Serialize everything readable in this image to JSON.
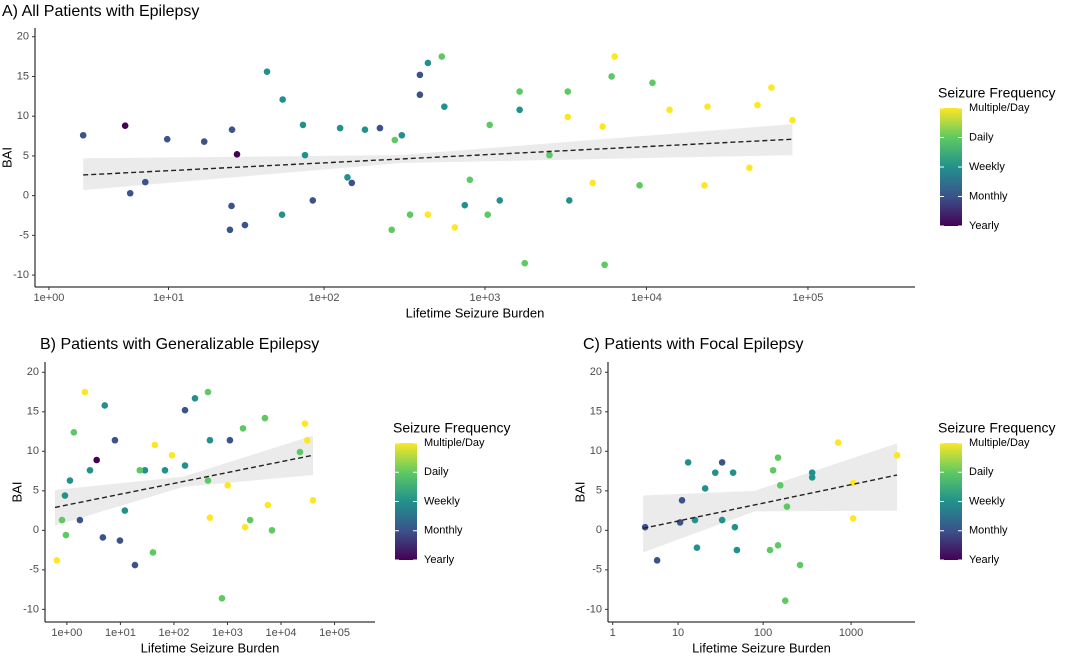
{
  "chart_data": [
    {
      "type": "scatter",
      "title": "A) All Patients with Epilepsy",
      "x_label": "Lifetime Seizure Burden",
      "y_label": "BAI",
      "xscale": "log1p",
      "xlim": [
        0.64,
        460000
      ],
      "ylim": [
        -11.5,
        21.1
      ],
      "xticks": [
        {
          "value": 1,
          "label": "1e+00"
        },
        {
          "value": 10,
          "label": "1e+01"
        },
        {
          "value": 100,
          "label": "1e+02"
        },
        {
          "value": 1000,
          "label": "1e+03"
        },
        {
          "value": 10000,
          "label": "1e+04"
        },
        {
          "value": 100000,
          "label": "1e+05"
        }
      ],
      "yticks": [
        -10,
        -5,
        0,
        5,
        10,
        15,
        20
      ],
      "legend_title": "Seizure Frequency",
      "series": [
        {
          "name": "Yearly",
          "color": "#440154",
          "x": [
            4.93,
            28.2
          ],
          "values": [
            8.8,
            5.2
          ]
        },
        {
          "name": "Monthly",
          "color": "#3b528b",
          "x": [
            2.26,
            5.37,
            6.9,
            9.8,
            17.3,
            26.2,
            25.4,
            26,
            31.7,
            85,
            149,
            223,
            395,
            395
          ],
          "values": [
            7.6,
            0.3,
            1.7,
            7.1,
            6.8,
            8.3,
            -4.3,
            -1.3,
            -3.7,
            -0.6,
            1.6,
            8.5,
            15.2,
            12.7
          ]
        },
        {
          "name": "Weekly",
          "color": "#21918c",
          "x": [
            43.8,
            55,
            73.8,
            76,
            54.5,
            126,
            305,
            443,
            560,
            1640,
            180,
            140,
            1235,
            750,
            3330
          ],
          "values": [
            15.6,
            12.1,
            8.9,
            5.1,
            -2.4,
            8.5,
            7.6,
            16.7,
            11.2,
            10.8,
            8.3,
            2.3,
            -0.6,
            -1.2,
            -0.6
          ]
        },
        {
          "name": "Daily",
          "color": "#5ec962",
          "x": [
            540,
            343,
            276,
            264,
            806,
            1070,
            1040,
            1765,
            1640,
            3260,
            2510,
            5510,
            6090,
            10900,
            9070
          ],
          "values": [
            17.5,
            -2.4,
            7.0,
            -4.3,
            2.0,
            8.9,
            -2.4,
            -8.5,
            13.1,
            13.1,
            5.1,
            -8.7,
            15.0,
            14.2,
            1.3
          ]
        },
        {
          "name": "Multiple/Day",
          "color": "#fde725",
          "x": [
            6360,
            5360,
            3260,
            13900,
            23900,
            22900,
            48700,
            59400,
            80200,
            651,
            443,
            4650,
            43400
          ],
          "values": [
            17.5,
            8.7,
            9.9,
            10.8,
            11.2,
            1.3,
            11.4,
            13.6,
            9.5,
            -4.0,
            -2.4,
            1.6,
            3.5
          ]
        }
      ],
      "trend": {
        "x": [
          2.26,
          80200
        ],
        "values": [
          2.6,
          7.1
        ]
      },
      "band": {
        "x": [
          2.26,
          300,
          80200
        ],
        "lower": [
          0.7,
          4.1,
          5.1
        ],
        "upper": [
          4.7,
          5.1,
          9.0
        ]
      }
    },
    {
      "type": "scatter",
      "title": "B) Patients with Generalizable Epilepsy",
      "x_label": "Lifetime Seizure Burden",
      "y_label": "BAI",
      "xscale": "log",
      "xlim": [
        0.39,
        570000
      ],
      "ylim": [
        -11.6,
        21.3
      ],
      "xticks": [
        {
          "value": 1,
          "label": "1e+00"
        },
        {
          "value": 10,
          "label": "1e+01"
        },
        {
          "value": 100,
          "label": "1e+02"
        },
        {
          "value": 1000,
          "label": "1e+03"
        },
        {
          "value": 10000,
          "label": "1e+04"
        },
        {
          "value": 100000,
          "label": "1e+05"
        }
      ],
      "yticks": [
        -10,
        -5,
        0,
        5,
        10,
        15,
        20
      ],
      "legend_title": "Seizure Frequency",
      "series": [
        {
          "name": "Yearly",
          "color": "#440154",
          "x": [
            3.6
          ],
          "values": [
            8.9
          ]
        },
        {
          "name": "Monthly",
          "color": "#3b528b",
          "x": [
            1.75,
            4.7,
            9.8,
            18.7,
            161,
            1110,
            7.9
          ],
          "values": [
            1.3,
            -0.9,
            -1.3,
            -4.4,
            15.2,
            11.4,
            11.4
          ]
        },
        {
          "name": "Weekly",
          "color": "#21918c",
          "x": [
            5.1,
            0.92,
            12.1,
            28.7,
            247,
            470,
            68,
            161,
            2.7,
            1.14
          ],
          "values": [
            15.8,
            4.4,
            2.5,
            7.6,
            16.7,
            11.4,
            7.6,
            8.2,
            7.6,
            6.3
          ]
        },
        {
          "name": "Daily",
          "color": "#5ec962",
          "x": [
            1.35,
            0.81,
            0.96,
            40.5,
            432,
            789,
            1950,
            5010,
            6780,
            22600,
            23,
            432,
            2650
          ],
          "values": [
            12.4,
            1.3,
            -0.6,
            -2.8,
            17.5,
            -8.6,
            12.9,
            14.2,
            0,
            9.9,
            7.6,
            6.3,
            1.3
          ]
        },
        {
          "name": "Multiple/Day",
          "color": "#fde725",
          "x": [
            0.65,
            2.17,
            28000,
            30900,
            39600,
            470,
            2130,
            5680,
            1010,
            44,
            92
          ],
          "values": [
            -3.8,
            17.5,
            13.5,
            11.4,
            3.8,
            1.6,
            0.4,
            3.2,
            5.7,
            10.8,
            9.5
          ]
        }
      ],
      "trend": {
        "x": [
          0.6,
          39600
        ],
        "values": [
          2.9,
          9.5
        ]
      },
      "band": {
        "x": [
          0.6,
          150,
          39600
        ],
        "lower": [
          0.6,
          5.5,
          7.0
        ],
        "upper": [
          5.1,
          6.8,
          12.0
        ]
      }
    },
    {
      "type": "scatter",
      "title": "C) Patients with Focal Epilepsy",
      "x_label": "Lifetime Seizure Burden",
      "y_label": "BAI",
      "xscale": "log1p",
      "xlim": [
        0.77,
        5300
      ],
      "ylim": [
        -11.6,
        21.3
      ],
      "xticks": [
        1,
        10,
        100,
        1000
      ],
      "yticks": [
        -10,
        -5,
        0,
        5,
        10,
        15,
        20
      ],
      "legend_title": "Seizure Frequency",
      "series": [
        {
          "name": "Yearly",
          "color": "#440154",
          "x": [],
          "values": []
        },
        {
          "name": "Monthly",
          "color": "#3b528b",
          "x": [
            3.66,
            5.37,
            11.2,
            33.7,
            10.6
          ],
          "values": [
            0.4,
            -3.8,
            3.8,
            8.6,
            1.0
          ]
        },
        {
          "name": "Weekly",
          "color": "#21918c",
          "x": [
            13.3,
            16.1,
            17.0,
            21.3,
            28.0,
            45.2,
            47.4,
            50.0,
            362,
            362,
            33.7
          ],
          "values": [
            8.6,
            1.3,
            -2.2,
            5.3,
            7.3,
            7.3,
            0.4,
            -2.5,
            6.7,
            7.3,
            1.3
          ]
        },
        {
          "name": "Daily",
          "color": "#5ec962",
          "x": [
            120,
            148,
            130,
            157,
            148,
            179,
            187,
            264
          ],
          "values": [
            -2.5,
            -1.9,
            7.6,
            5.7,
            9.2,
            -8.9,
            3.0,
            -4.4
          ]
        },
        {
          "name": "Multiple/Day",
          "color": "#fde725",
          "x": [
            714,
            1055,
            1055,
            3320
          ],
          "values": [
            11.1,
            6.0,
            1.5,
            9.5
          ]
        }
      ],
      "trend": {
        "x": [
          3.42,
          3320
        ],
        "values": [
          0.25,
          7.0
        ]
      },
      "band": {
        "x": [
          3.42,
          80,
          3320
        ],
        "lower": [
          -2.8,
          2.4,
          2.5
        ],
        "upper": [
          4.4,
          5.0,
          11.0
        ]
      }
    }
  ]
}
